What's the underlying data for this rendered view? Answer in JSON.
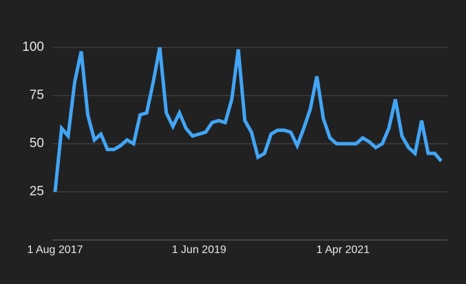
{
  "chart_data": {
    "type": "line",
    "categories": [
      "1 Aug 2017",
      null,
      null,
      null,
      null,
      null,
      null,
      null,
      null,
      null,
      null,
      null,
      null,
      null,
      null,
      null,
      null,
      null,
      null,
      null,
      null,
      null,
      "1 Jun 2019",
      null,
      null,
      null,
      null,
      null,
      null,
      null,
      null,
      null,
      null,
      null,
      null,
      null,
      null,
      null,
      null,
      null,
      null,
      null,
      null,
      null,
      "1 Apr 2021",
      null,
      null,
      null,
      null,
      null,
      null,
      null,
      null,
      null,
      null,
      null,
      null,
      null,
      null,
      null
    ],
    "series": [
      {
        "color": "#42a5f5",
        "values": [
          25,
          58,
          54,
          82,
          98,
          65,
          52,
          55,
          47,
          47,
          49,
          52,
          50,
          65,
          66,
          82,
          100,
          66,
          59,
          66,
          58,
          54,
          55,
          56,
          61,
          62,
          61,
          73,
          99,
          62,
          56,
          43,
          45,
          55,
          57,
          57,
          56,
          49,
          58,
          68,
          85,
          63,
          53,
          50,
          50,
          50,
          50,
          53,
          51,
          48,
          50,
          58,
          73,
          54,
          48,
          45,
          62,
          45,
          45,
          41
        ]
      }
    ],
    "ylim": [
      0,
      100
    ],
    "yticks": [
      25,
      50,
      75,
      100
    ],
    "grid": true
  }
}
